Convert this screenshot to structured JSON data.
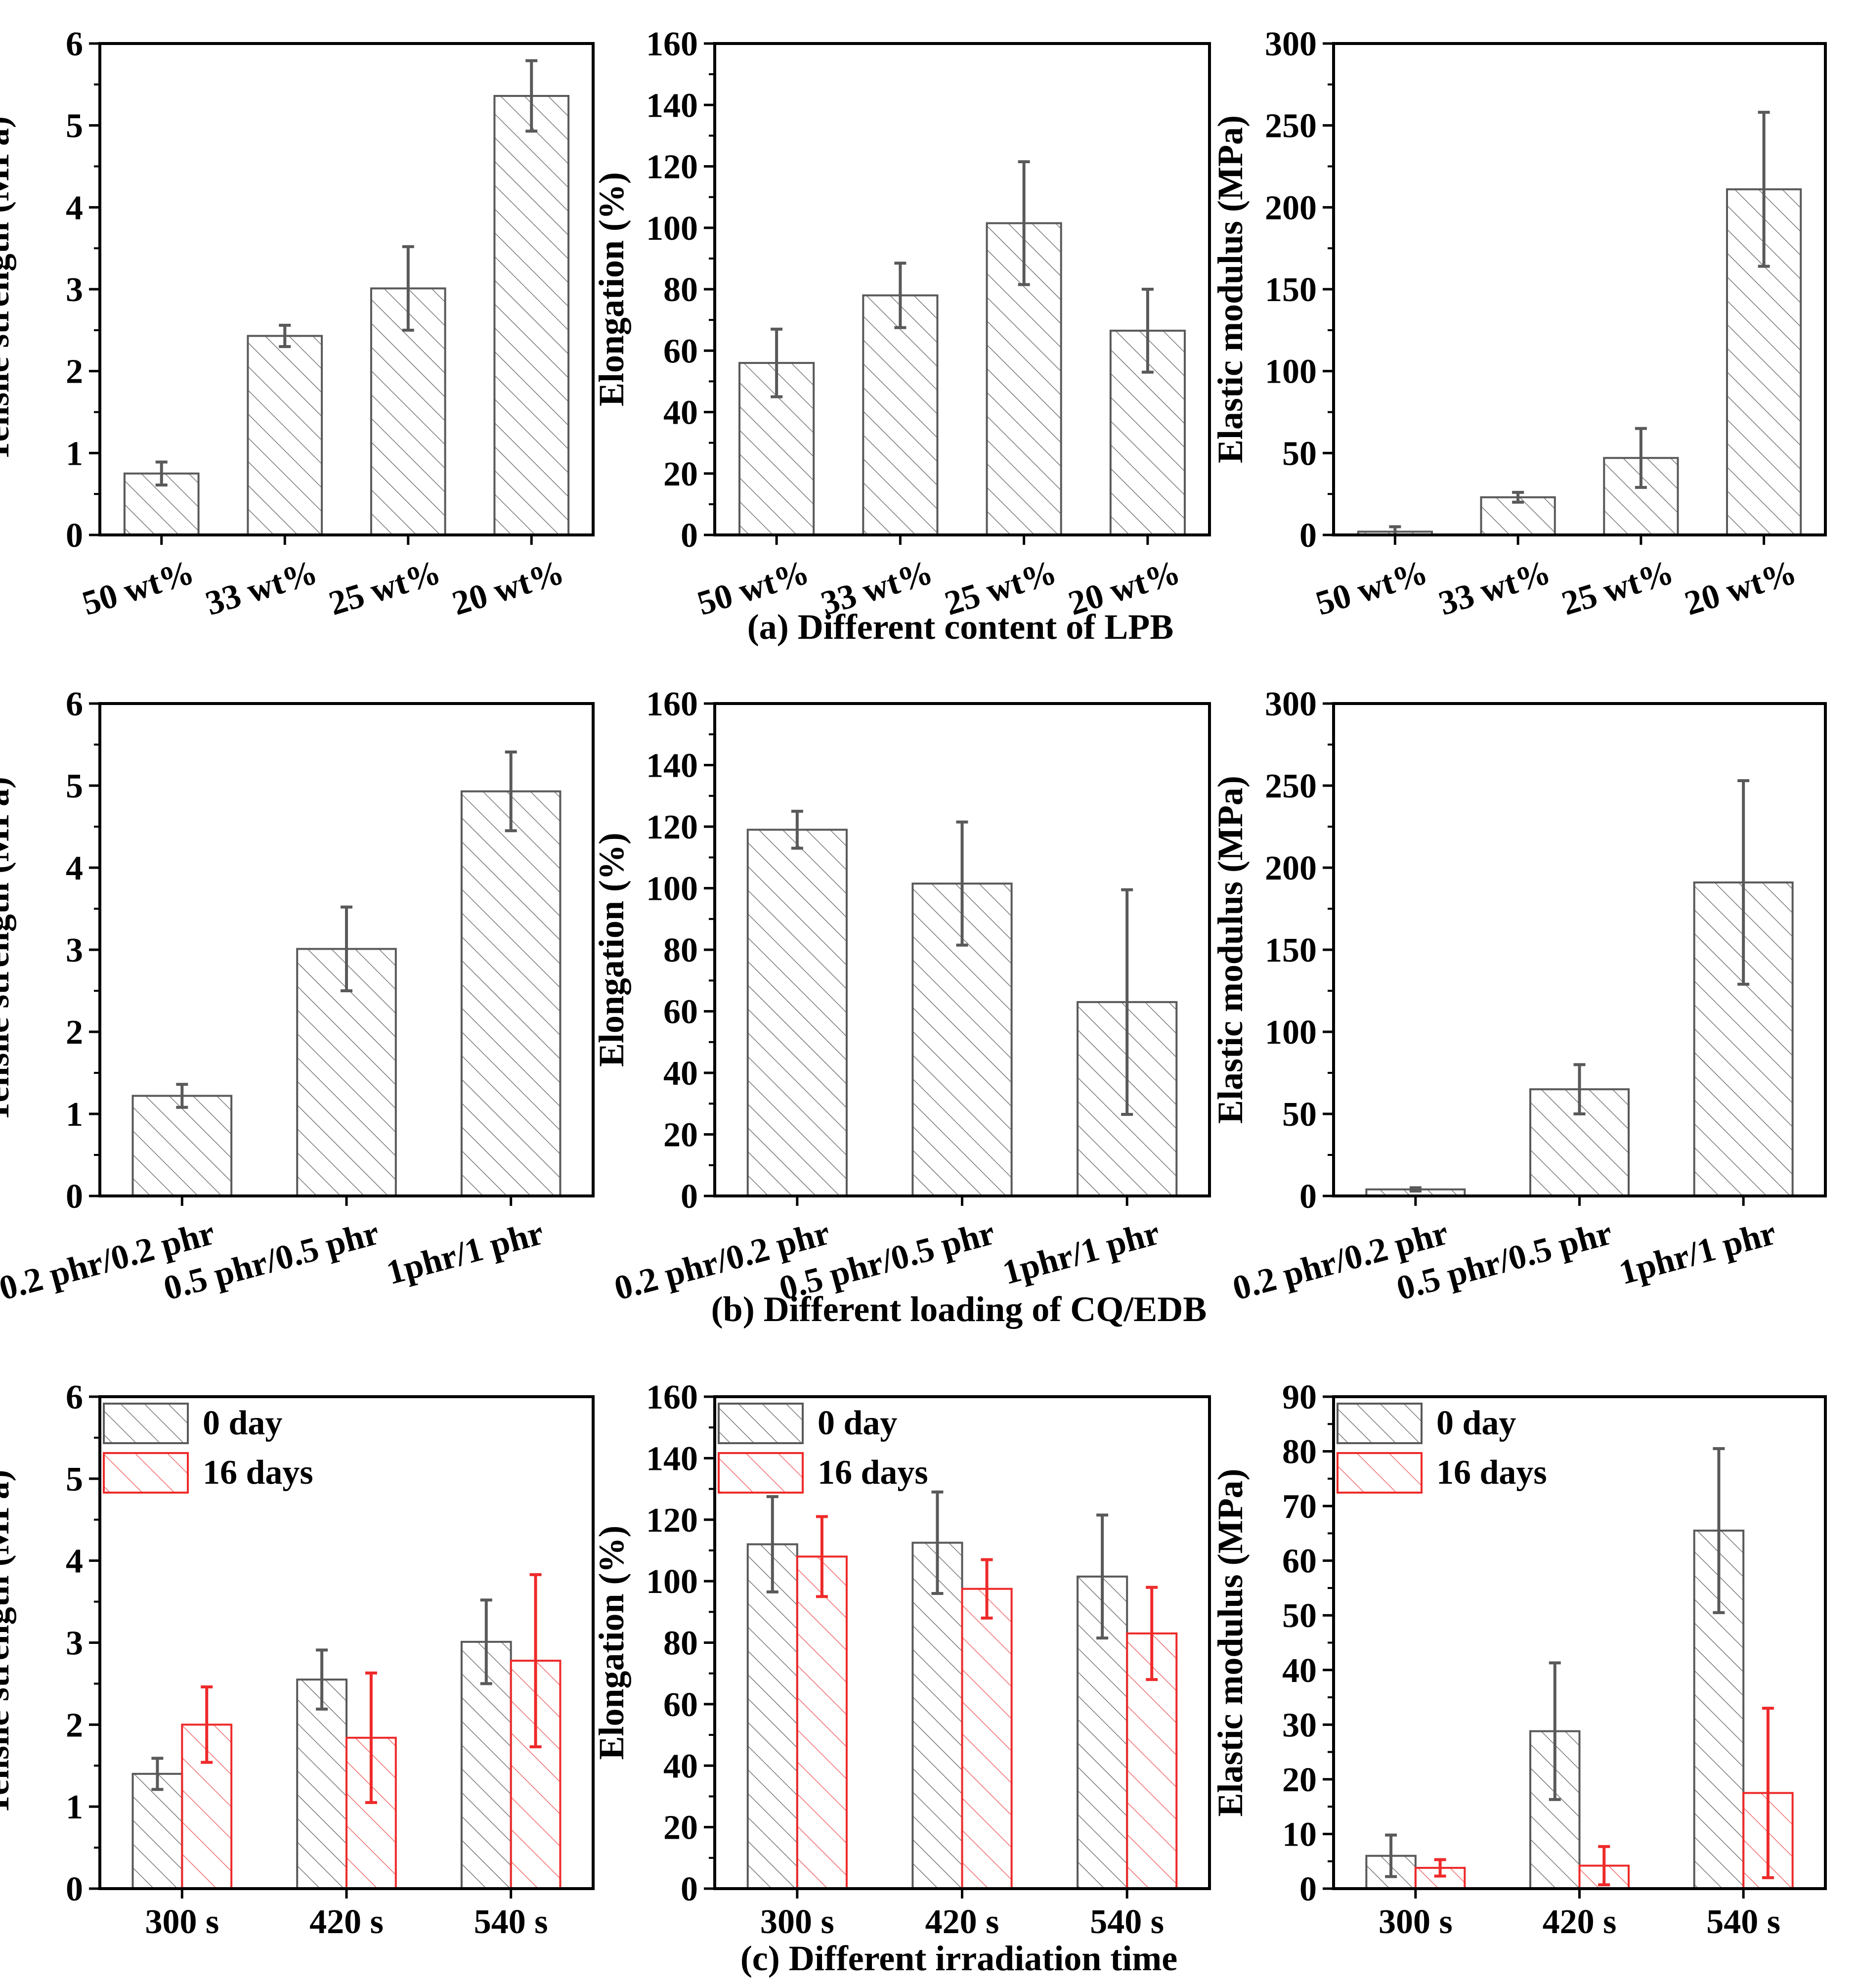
{
  "chart_data": [
    {
      "id": "a1",
      "type": "bar",
      "row": 0,
      "col": 0,
      "label_rotation": -17,
      "categories": [
        "50 wt%",
        "33 wt%",
        "25 wt%",
        "20 wt%"
      ],
      "ylabel": "Tensile strength (MPa)",
      "ylim": [
        0,
        6
      ],
      "ytick_step": 1,
      "minor_per_major": 2,
      "yticks": [
        "0",
        "1",
        "2",
        "3",
        "4",
        "5",
        "6"
      ],
      "series": [
        {
          "name": "",
          "color": "#595959",
          "values": [
            0.75,
            2.43,
            3.01,
            5.36
          ],
          "errors": [
            0.14,
            0.13,
            0.51,
            0.43
          ]
        }
      ]
    },
    {
      "id": "a2",
      "type": "bar",
      "row": 0,
      "col": 1,
      "label_rotation": -17,
      "categories": [
        "50 wt%",
        "33 wt%",
        "25 wt%",
        "20 wt%"
      ],
      "ylabel": "Elongation (%)",
      "ylim": [
        0,
        160
      ],
      "ytick_step": 20,
      "minor_per_major": 2,
      "yticks": [
        "0",
        "20",
        "40",
        "60",
        "80",
        "100",
        "120",
        "140",
        "160"
      ],
      "series": [
        {
          "name": "",
          "color": "#595959",
          "values": [
            56,
            78,
            101.5,
            66.5
          ],
          "errors": [
            11,
            10.5,
            20,
            13.5
          ]
        }
      ]
    },
    {
      "id": "a3",
      "type": "bar",
      "row": 0,
      "col": 2,
      "label_rotation": -17,
      "categories": [
        "50 wt%",
        "33 wt%",
        "25 wt%",
        "20 wt%"
      ],
      "ylabel": "Elastic modulus (MPa)",
      "ylim": [
        0,
        300
      ],
      "ytick_step": 50,
      "minor_per_major": 2,
      "yticks": [
        "0",
        "50",
        "100",
        "150",
        "200",
        "250",
        "300"
      ],
      "series": [
        {
          "name": "",
          "color": "#595959",
          "values": [
            2,
            23,
            47,
            211
          ],
          "errors": [
            3,
            3,
            18,
            47
          ]
        }
      ]
    },
    {
      "id": "b1",
      "type": "bar",
      "row": 1,
      "col": 0,
      "label_rotation": -15,
      "categories": [
        "0.2 phr/0.2 phr",
        "0.5 phr/0.5 phr",
        "1phr/1 phr"
      ],
      "ylabel": "Tensile strength (MPa)",
      "ylim": [
        0,
        6
      ],
      "ytick_step": 1,
      "minor_per_major": 2,
      "yticks": [
        "0",
        "1",
        "2",
        "3",
        "4",
        "5",
        "6"
      ],
      "series": [
        {
          "name": "",
          "color": "#595959",
          "values": [
            1.22,
            3.01,
            4.93
          ],
          "errors": [
            0.14,
            0.51,
            0.48
          ]
        }
      ]
    },
    {
      "id": "b2",
      "type": "bar",
      "row": 1,
      "col": 1,
      "label_rotation": -15,
      "categories": [
        "0.2 phr/0.2 phr",
        "0.5 phr/0.5 phr",
        "1phr/1 phr"
      ],
      "ylabel": "Elongation (%)",
      "ylim": [
        0,
        160
      ],
      "ytick_step": 20,
      "minor_per_major": 2,
      "yticks": [
        "0",
        "20",
        "40",
        "60",
        "80",
        "100",
        "120",
        "140",
        "160"
      ],
      "series": [
        {
          "name": "",
          "color": "#595959",
          "values": [
            119,
            101.5,
            63
          ],
          "errors": [
            6,
            20,
            36.5
          ]
        }
      ]
    },
    {
      "id": "b3",
      "type": "bar",
      "row": 1,
      "col": 2,
      "label_rotation": -15,
      "categories": [
        "0.2 phr/0.2 phr",
        "0.5 phr/0.5 phr",
        "1phr/1 phr"
      ],
      "ylabel": "Elastic modulus (MPa)",
      "ylim": [
        0,
        300
      ],
      "ytick_step": 50,
      "minor_per_major": 2,
      "yticks": [
        "0",
        "50",
        "100",
        "150",
        "200",
        "250",
        "300"
      ],
      "series": [
        {
          "name": "",
          "color": "#595959",
          "values": [
            4,
            65,
            191
          ],
          "errors": [
            1,
            15,
            62
          ]
        }
      ]
    },
    {
      "id": "c1",
      "type": "bar",
      "row": 2,
      "col": 0,
      "label_rotation": 0,
      "categories": [
        "300 s",
        "420 s",
        "540 s"
      ],
      "ylabel": "Tensile strength (MPa)",
      "ylim": [
        0,
        6
      ],
      "ytick_step": 1,
      "minor_per_major": 2,
      "yticks": [
        "0",
        "1",
        "2",
        "3",
        "4",
        "5",
        "6"
      ],
      "legend": "top-left",
      "series": [
        {
          "name": "0 day",
          "color": "#595959",
          "values": [
            1.4,
            2.55,
            3.01
          ],
          "errors": [
            0.19,
            0.36,
            0.51
          ]
        },
        {
          "name": "16 days",
          "color": "#ee2a2a",
          "values": [
            2.0,
            1.84,
            2.78
          ],
          "errors": [
            0.46,
            0.79,
            1.05
          ]
        }
      ]
    },
    {
      "id": "c2",
      "type": "bar",
      "row": 2,
      "col": 1,
      "label_rotation": 0,
      "categories": [
        "300 s",
        "420 s",
        "540 s"
      ],
      "ylabel": "Elongation (%)",
      "ylim": [
        0,
        160
      ],
      "ytick_step": 20,
      "minor_per_major": 2,
      "yticks": [
        "0",
        "20",
        "40",
        "60",
        "80",
        "100",
        "120",
        "140",
        "160"
      ],
      "legend": "top-left",
      "series": [
        {
          "name": "0 day",
          "color": "#595959",
          "values": [
            112,
            112.5,
            101.5
          ],
          "errors": [
            15.5,
            16.5,
            20
          ]
        },
        {
          "name": "16 days",
          "color": "#ee2a2a",
          "values": [
            108,
            97.5,
            83
          ],
          "errors": [
            13,
            9.5,
            15
          ]
        }
      ]
    },
    {
      "id": "c3",
      "type": "bar",
      "row": 2,
      "col": 2,
      "label_rotation": 0,
      "categories": [
        "300 s",
        "420 s",
        "540 s"
      ],
      "ylabel": "Elastic modulus (MPa)",
      "ylim": [
        0,
        90
      ],
      "ytick_step": 10,
      "minor_per_major": 2,
      "yticks": [
        "0",
        "10",
        "20",
        "30",
        "40",
        "50",
        "60",
        "70",
        "80",
        "90"
      ],
      "legend": "top-left",
      "series": [
        {
          "name": "0 day",
          "color": "#595959",
          "values": [
            6,
            28.8,
            65.5
          ],
          "errors": [
            3.8,
            12.5,
            15
          ]
        },
        {
          "name": "16 days",
          "color": "#ee2a2a",
          "values": [
            3.8,
            4.2,
            17.5
          ],
          "errors": [
            1.5,
            3.5,
            15.5
          ]
        }
      ]
    }
  ],
  "captions": [
    "(a) Different content of LPB",
    "(b) Different loading of CQ/EDB",
    "(c) Different irradiation time"
  ]
}
